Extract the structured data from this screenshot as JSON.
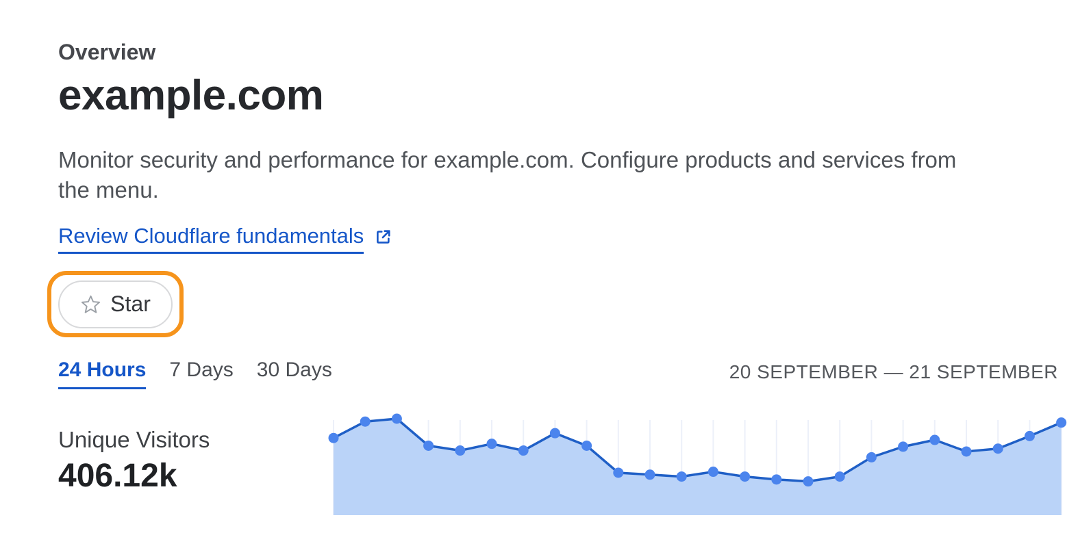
{
  "page": {
    "eyebrow": "Overview",
    "title": "example.com",
    "description": "Monitor security and performance for example.com. Configure products and services from\nthe menu.",
    "link": {
      "label": "Review Cloudflare fundamentals",
      "icon": "external-link-icon"
    },
    "star_button": {
      "label": "Star",
      "icon": "star-icon"
    }
  },
  "time_tabs": {
    "items": [
      {
        "label": "24 Hours",
        "active": true
      },
      {
        "label": "7 Days",
        "active": false
      },
      {
        "label": "30 Days",
        "active": false
      }
    ],
    "date_range": "20 SEPTEMBER — 21 SEPTEMBER"
  },
  "metric": {
    "label": "Unique Visitors",
    "value": "406.12k"
  },
  "colors": {
    "link_blue": "#1556c8",
    "active_tab_blue": "#1556c8",
    "annotation_orange": "#f6941c",
    "chart_line": "#1f5fc6",
    "chart_dot": "#4b84ed",
    "chart_fill": "#bad3f8",
    "chart_gridline": "#ecf0f9"
  },
  "chart_data": {
    "type": "area",
    "title": "Unique Visitors — 24 Hours",
    "series_label": "Unique Visitors",
    "x_unit": "hour",
    "x": [
      0,
      1,
      2,
      3,
      4,
      5,
      6,
      7,
      8,
      9,
      10,
      11,
      12,
      13,
      14,
      15,
      16,
      17,
      18,
      19,
      20,
      21,
      22,
      23
    ],
    "values": [
      80,
      97,
      100,
      72,
      67,
      74,
      67,
      85,
      72,
      44,
      42,
      40,
      45,
      40,
      37,
      35,
      40,
      60,
      71,
      78,
      66,
      69,
      82,
      96
    ],
    "value_scale": "relative-percent-of-peak (chart has no visible y-axis labels)",
    "total_shown": "406.12k",
    "xlabel": "",
    "ylabel": "",
    "ylim": [
      0,
      117
    ],
    "grid": "vertical gridline at each data point",
    "legend_position": "none",
    "markers": true
  }
}
